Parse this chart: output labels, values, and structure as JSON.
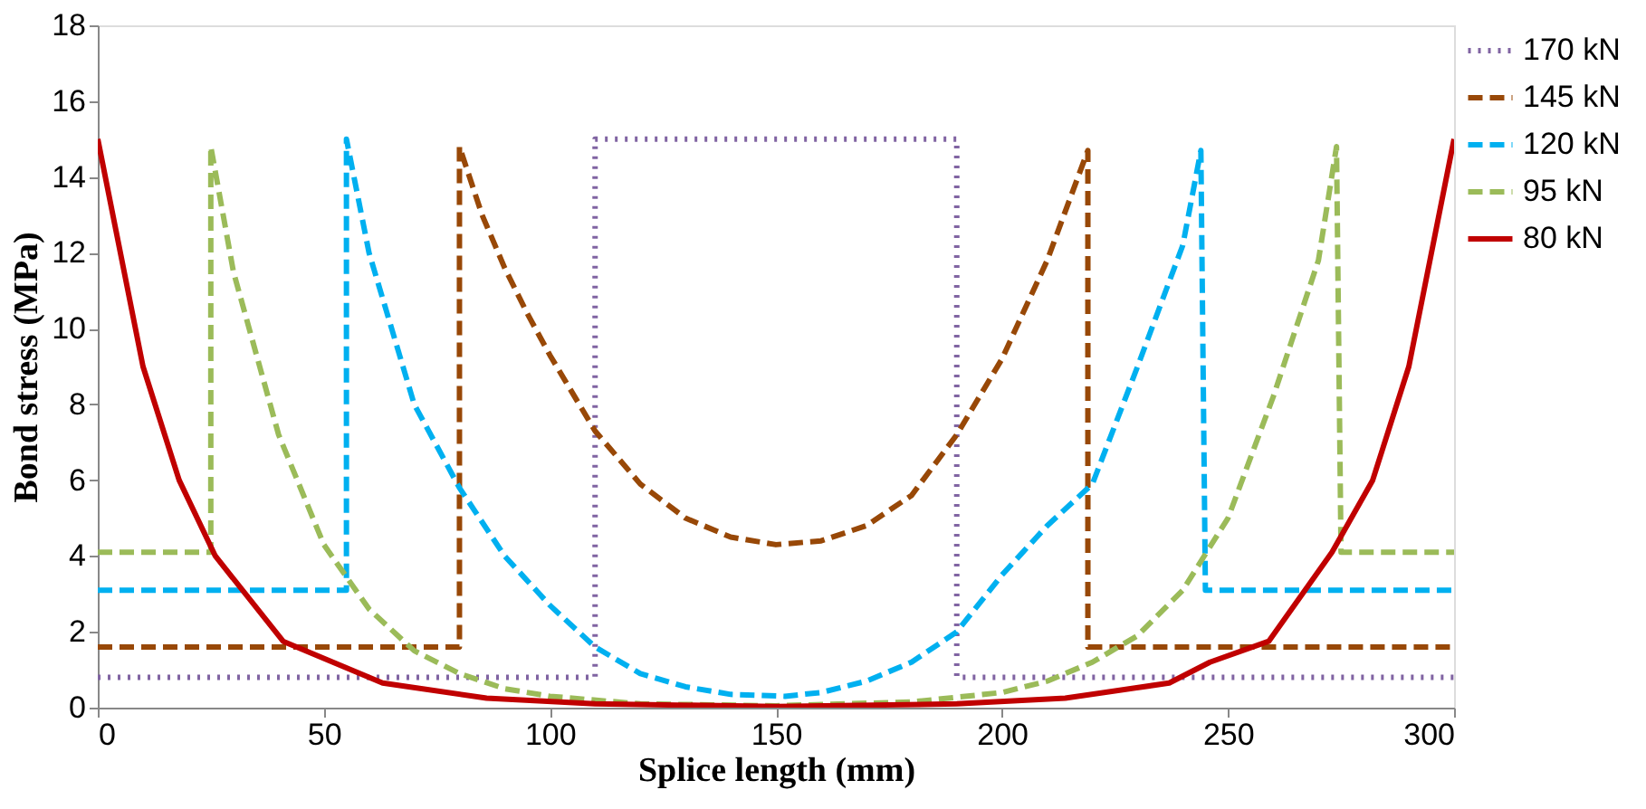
{
  "chart_data": {
    "type": "line",
    "xlabel": "Splice length (mm)",
    "ylabel": "Bond stress (MPa)",
    "xlim": [
      0,
      300
    ],
    "ylim": [
      0,
      18
    ],
    "xticks": [
      0,
      50,
      100,
      150,
      200,
      250,
      300
    ],
    "yticks": [
      0,
      2,
      4,
      6,
      8,
      10,
      12,
      14,
      16,
      18
    ],
    "grid": false,
    "legend": "right",
    "marker": "none",
    "series": [
      {
        "name": "170 kN",
        "color": "#8064a2",
        "line_style": "dotted",
        "x": [
          0,
          110,
          110,
          190,
          190,
          300
        ],
        "values": [
          0.8,
          0.8,
          15,
          15,
          0.8,
          0.8
        ]
      },
      {
        "name": "145 kN",
        "color": "#984807",
        "line_style": "dashed",
        "x": [
          0,
          80,
          80,
          85,
          90,
          95,
          100,
          110,
          120,
          130,
          140,
          150,
          160,
          170,
          180,
          190,
          200,
          210,
          219,
          219,
          300
        ],
        "values": [
          1.6,
          1.6,
          14.8,
          13.0,
          11.6,
          10.4,
          9.3,
          7.3,
          5.9,
          5.0,
          4.5,
          4.3,
          4.4,
          4.8,
          5.6,
          7.2,
          9.2,
          11.8,
          14.7,
          1.6,
          1.6
        ]
      },
      {
        "name": "120 kN",
        "color": "#00b0f0",
        "line_style": "dashed",
        "x": [
          0,
          55,
          55,
          60,
          70,
          80,
          90,
          100,
          110,
          120,
          130,
          140,
          152,
          160,
          170,
          180,
          190,
          200,
          210,
          220,
          230,
          240,
          244,
          245,
          300
        ],
        "values": [
          3.1,
          3.1,
          15,
          12,
          8,
          5.8,
          4.0,
          2.7,
          1.6,
          0.9,
          0.55,
          0.35,
          0.3,
          0.4,
          0.7,
          1.2,
          2.0,
          3.5,
          4.8,
          5.9,
          9.0,
          12.2,
          14.7,
          3.1,
          3.1
        ]
      },
      {
        "name": "95 kN",
        "color": "#9bbb59",
        "line_style": "dashed",
        "x": [
          0,
          25,
          25,
          30,
          40,
          50,
          60,
          70,
          80,
          90,
          100,
          120,
          150,
          180,
          200,
          210,
          220,
          230,
          240,
          250,
          260,
          270,
          274,
          275,
          300
        ],
        "values": [
          4.1,
          4.1,
          14.8,
          11.5,
          7.2,
          4.3,
          2.6,
          1.5,
          0.9,
          0.5,
          0.3,
          0.1,
          0.05,
          0.15,
          0.4,
          0.7,
          1.2,
          1.9,
          3.1,
          5.0,
          8.2,
          11.8,
          14.8,
          4.1,
          4.1
        ]
      },
      {
        "name": "80 kN",
        "color": "#c00000",
        "line_style": "solid",
        "x": [
          0,
          10,
          18,
          26,
          41,
          63,
          86,
          110,
          150,
          190,
          214,
          237,
          246,
          259,
          273,
          282,
          290,
          300
        ],
        "values": [
          15,
          9.0,
          6.0,
          4.0,
          1.75,
          0.65,
          0.25,
          0.1,
          0.03,
          0.1,
          0.25,
          0.65,
          1.2,
          1.75,
          4.1,
          6.0,
          9.0,
          15
        ]
      }
    ]
  }
}
